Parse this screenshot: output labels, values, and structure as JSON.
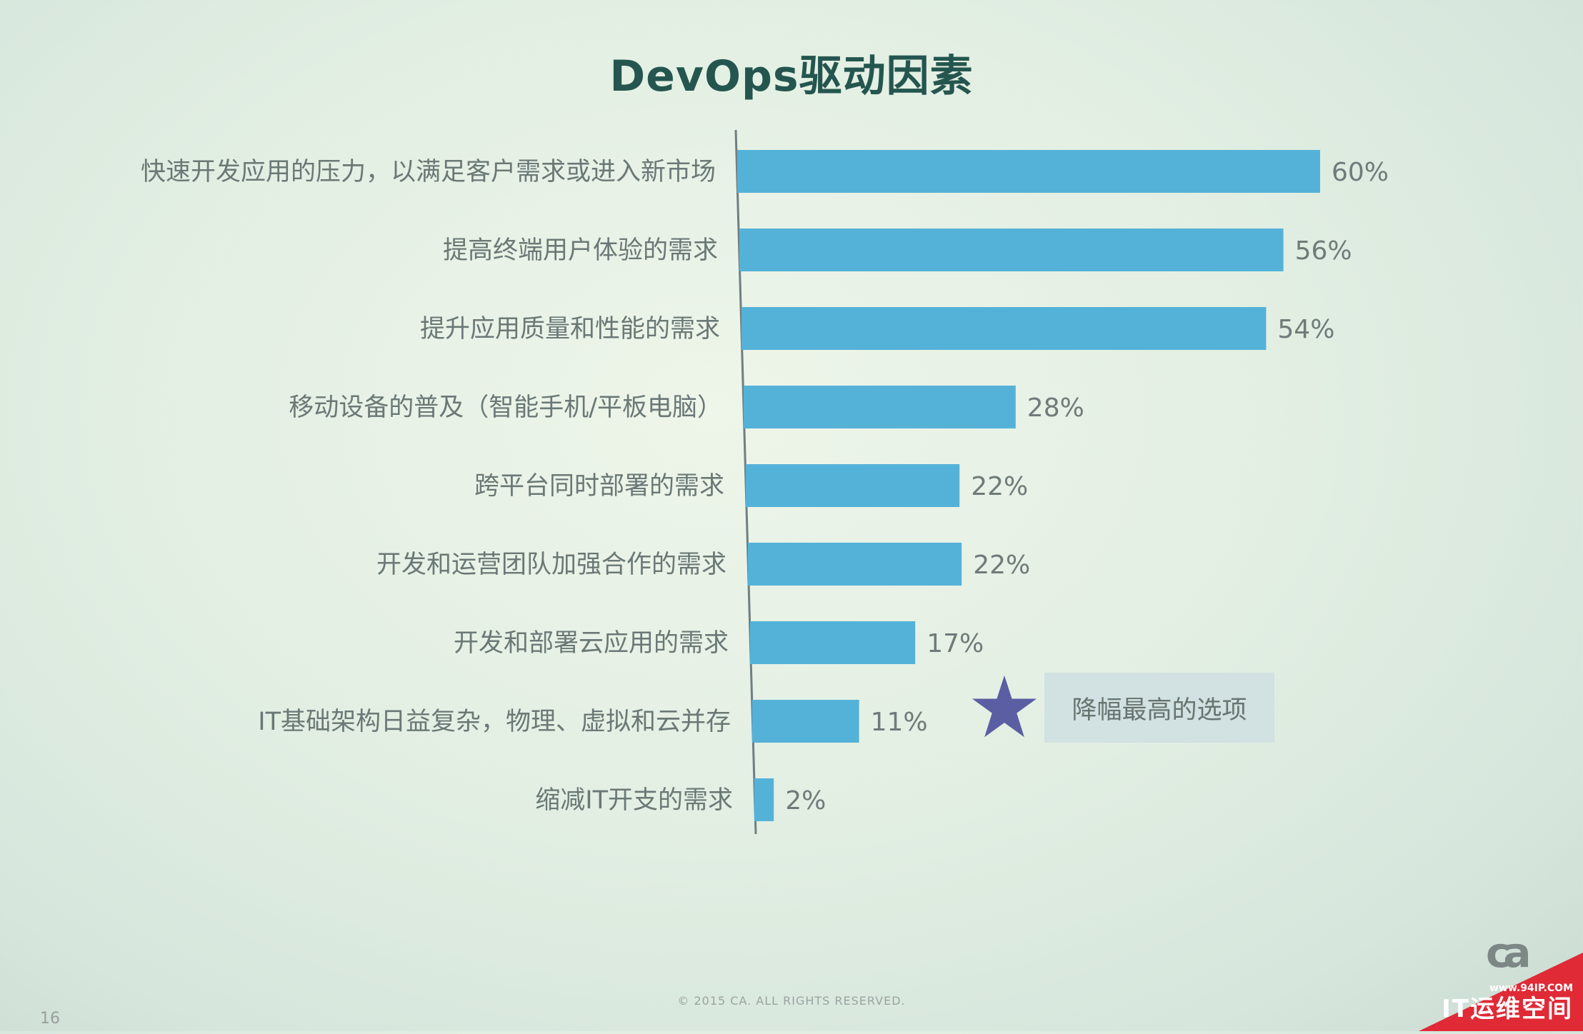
{
  "chart_data": {
    "type": "bar",
    "orientation": "horizontal",
    "title": "DevOps驱动因素",
    "categories": [
      "快速开发应用的压力，以满足客户需求或进入新市场",
      "提高终端用户体验的需求",
      "提升应用质量和性能的需求",
      "移动设备的普及（智能手机/平板电脑）",
      "跨平台同时部署的需求",
      "开发和运营团队加强合作的需求",
      "开发和部署云应用的需求",
      "IT基础架构日益复杂，物理、虚拟和云并存",
      "缩减IT开支的需求"
    ],
    "values": [
      60,
      56,
      54,
      28,
      22,
      22,
      17,
      11,
      2
    ],
    "value_labels": [
      "60%",
      "56%",
      "54%",
      "28%",
      "22%",
      "22%",
      "17%",
      "11%",
      "2%"
    ],
    "bar_color": "#54b2d8",
    "axis_color": "#6f7f80",
    "xlim": [
      0,
      60
    ],
    "grid": false,
    "legend": "none"
  },
  "annotation": {
    "text": "降幅最高的选项",
    "icon": "star-icon",
    "icon_color": "#5b5ea3"
  },
  "footer": {
    "copyright": "© 2015 CA. ALL RIGHTS RESERVED.",
    "page_number": "16",
    "logo_text": "ca"
  },
  "watermark": {
    "url": "www.94IP.COM",
    "brand": "IT运维空间",
    "color": "#e02a36"
  }
}
